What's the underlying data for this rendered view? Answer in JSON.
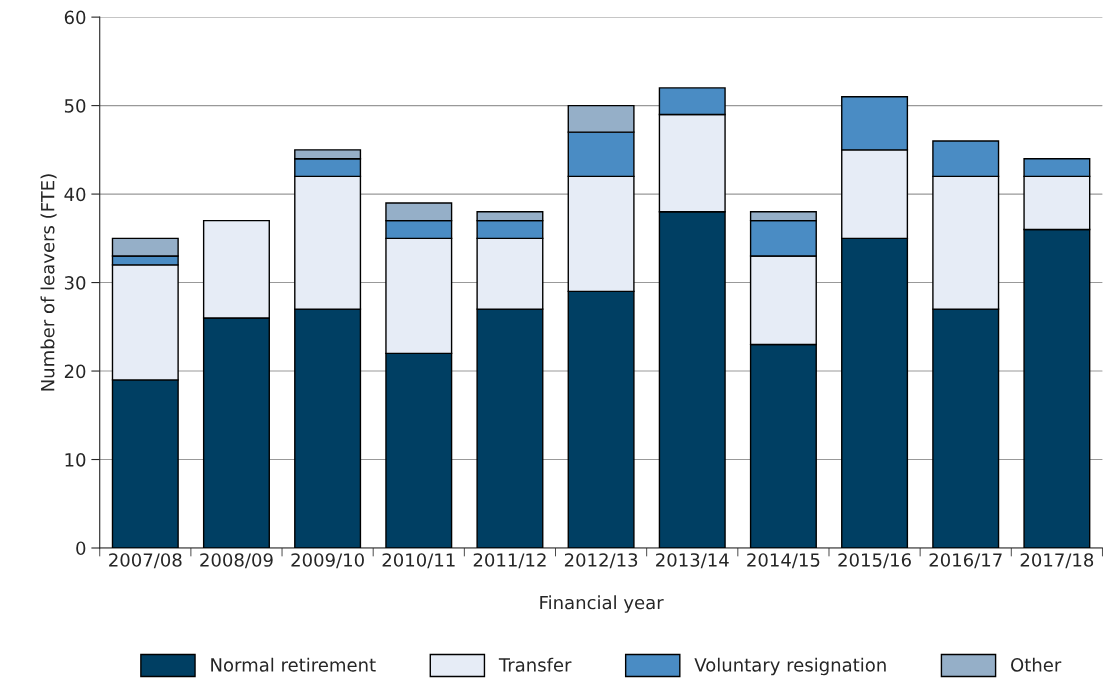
{
  "chart_data": {
    "type": "bar",
    "stacked": true,
    "xlabel": "Financial year",
    "ylabel": "Number of leavers (FTE)",
    "categories": [
      "2007/08",
      "2008/09",
      "2009/10",
      "2010/11",
      "2011/12",
      "2012/13",
      "2013/14",
      "2014/15",
      "2015/16",
      "2016/17",
      "2017/18"
    ],
    "series": [
      {
        "name": "Normal retirement",
        "color": "#003f63",
        "values": [
          19,
          26,
          27,
          22,
          27,
          29,
          38,
          23,
          35,
          27,
          36
        ]
      },
      {
        "name": "Transfer",
        "color": "#e6ecf6",
        "values": [
          13,
          11,
          15,
          13,
          8,
          13,
          11,
          10,
          10,
          15,
          6
        ]
      },
      {
        "name": "Voluntary resignation",
        "color": "#4a8cc4",
        "values": [
          1,
          0,
          2,
          2,
          2,
          5,
          3,
          4,
          6,
          4,
          2
        ]
      },
      {
        "name": "Other",
        "color": "#95afc8",
        "values": [
          2,
          0,
          1,
          2,
          1,
          3,
          0,
          1,
          0,
          0,
          0
        ]
      }
    ],
    "ylim": [
      0,
      60
    ],
    "yticks": [
      0,
      10,
      20,
      30,
      40,
      50,
      60
    ],
    "grid": "y",
    "legend": "bottom"
  }
}
